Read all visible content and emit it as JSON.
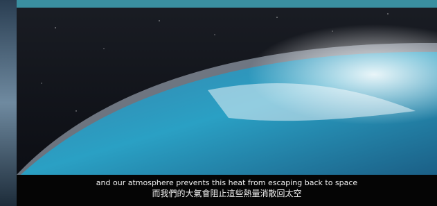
{
  "subtitles": {
    "english": "and our atmosphere prevents this heat from escaping back to space",
    "chinese": "而我們的大氣會阻止這些熱量消散回太空"
  }
}
